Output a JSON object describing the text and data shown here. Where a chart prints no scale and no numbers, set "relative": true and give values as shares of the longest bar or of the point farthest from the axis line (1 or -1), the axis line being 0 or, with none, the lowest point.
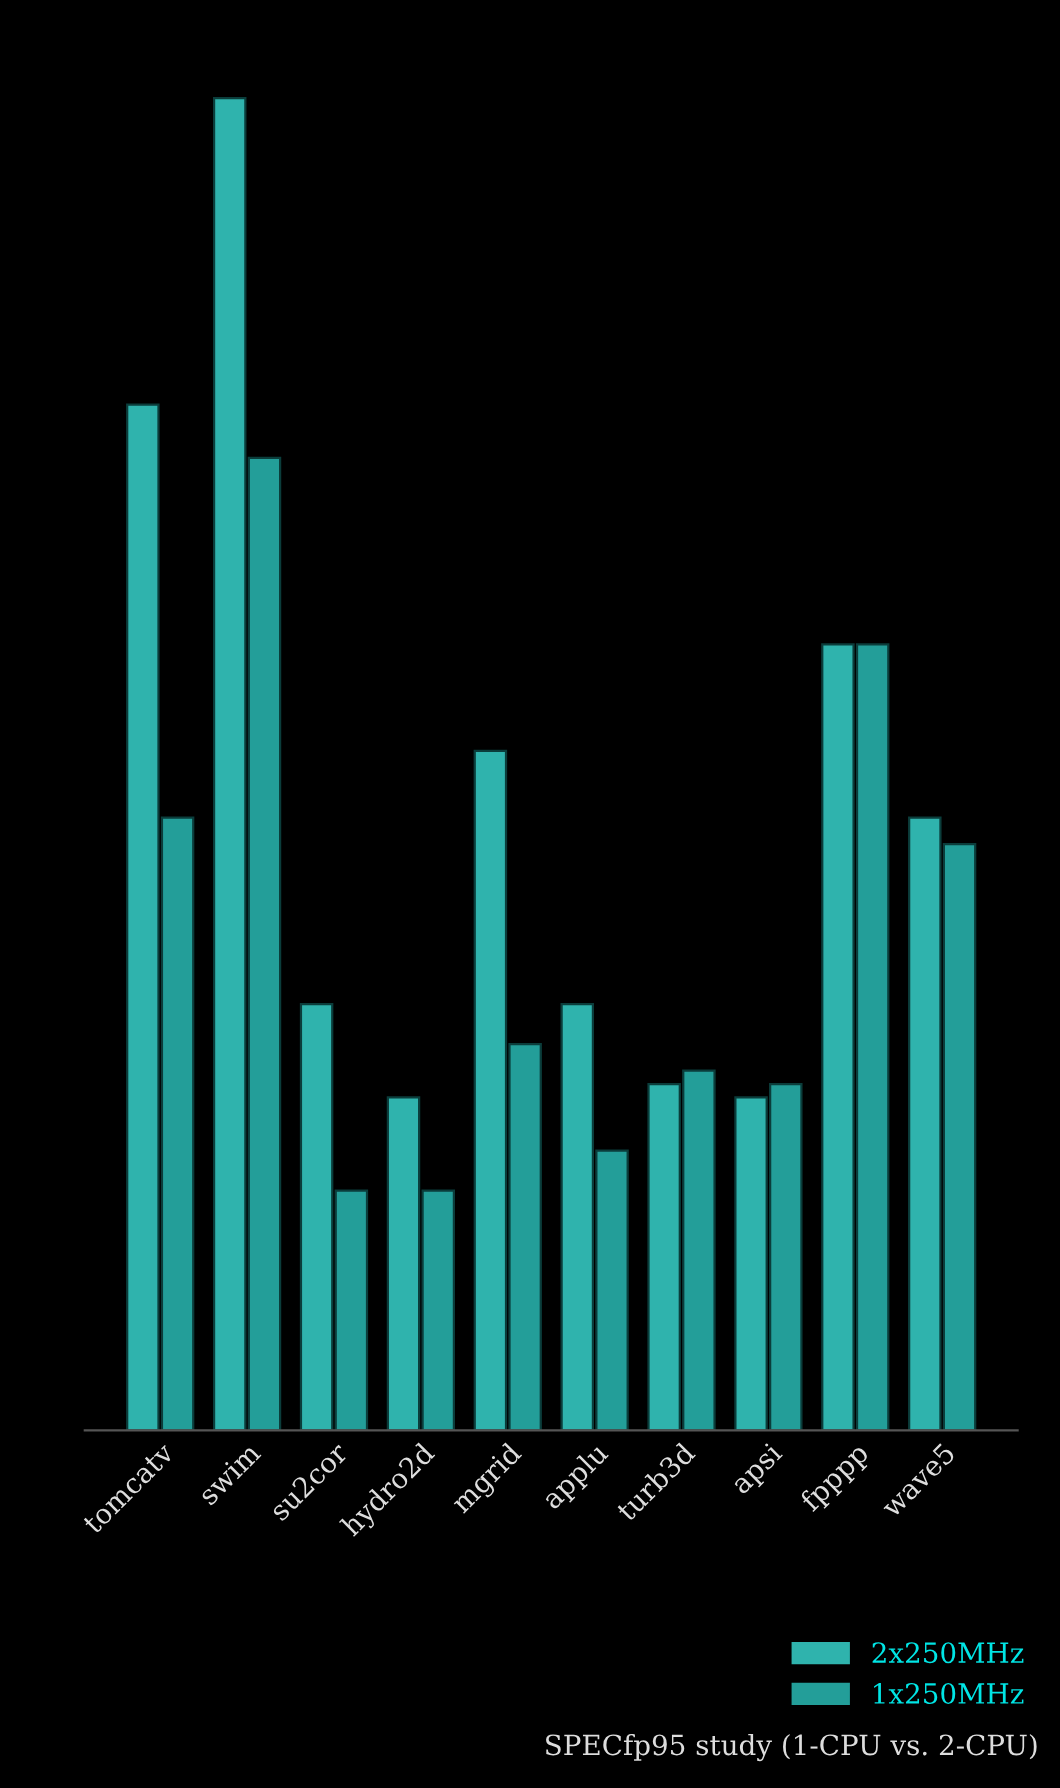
{
  "chart_data": {
    "type": "bar",
    "title": "SPECfp95 study (1-CPU vs. 2-CPU)",
    "relative": true,
    "categories": [
      "tomcatv",
      "swim",
      "su2cor",
      "hydro2d",
      "mgrid",
      "applu",
      "turb3d",
      "apsi",
      "fpppp",
      "wave5"
    ],
    "series": [
      {
        "name": "2x250MHz",
        "color": "#2fb3ad",
        "values": [
          0.77,
          1.0,
          0.32,
          0.25,
          0.51,
          0.32,
          0.26,
          0.25,
          0.59,
          0.46
        ]
      },
      {
        "name": "1x250MHz",
        "color": "#239e99",
        "values": [
          0.46,
          0.73,
          0.18,
          0.18,
          0.29,
          0.21,
          0.27,
          0.26,
          0.59,
          0.44
        ]
      }
    ],
    "legend": "bottom right",
    "grid": false
  }
}
